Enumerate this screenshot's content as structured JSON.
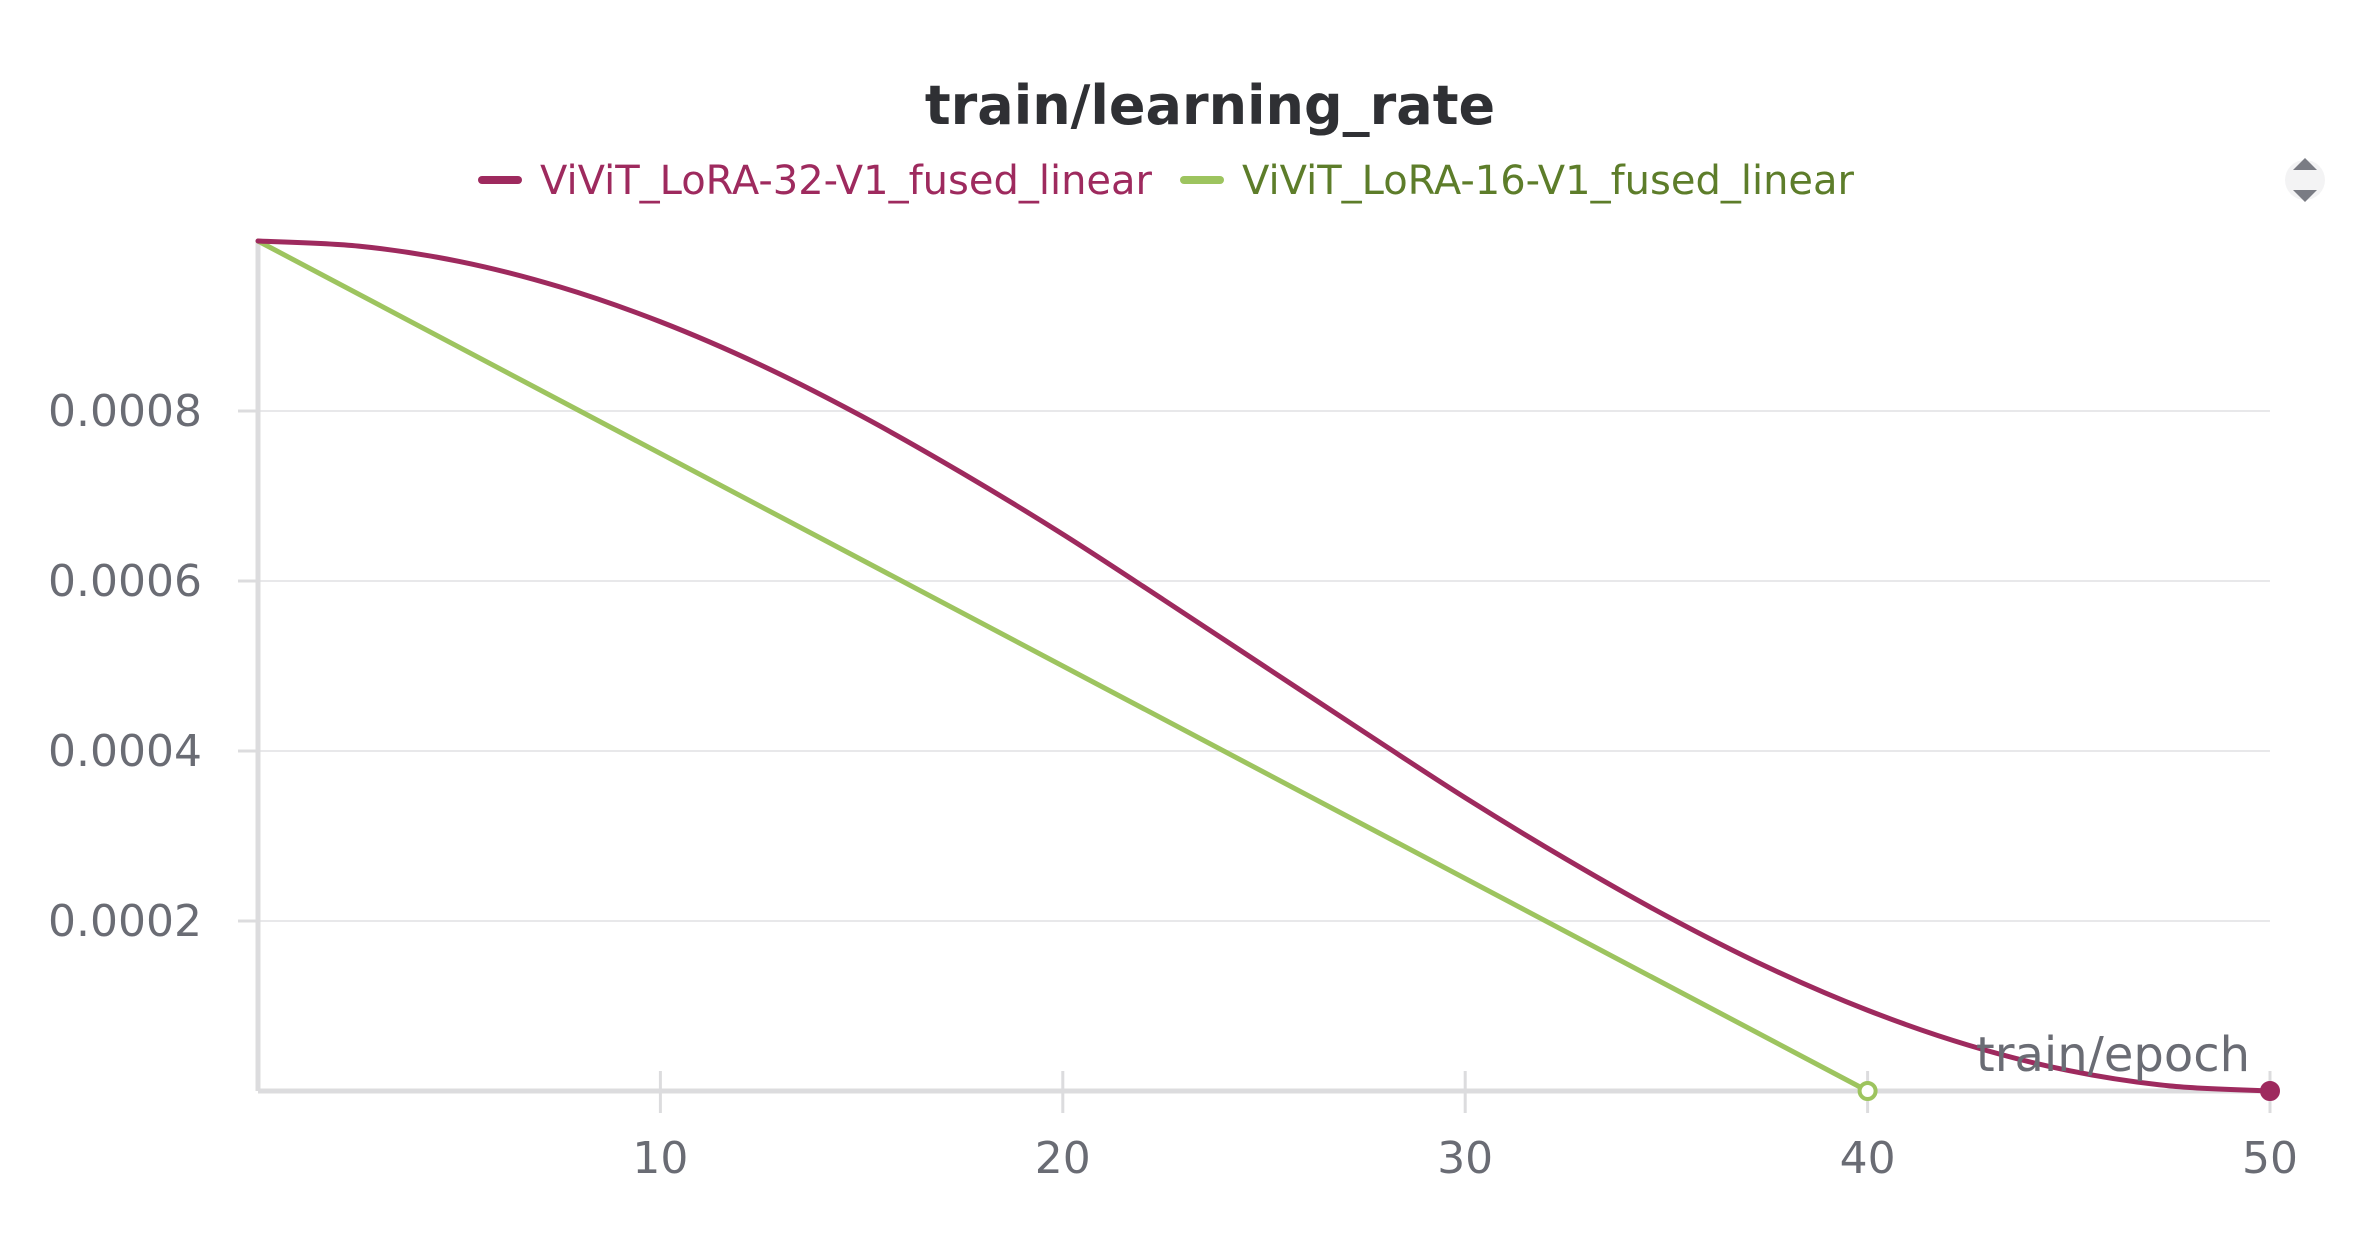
{
  "chart_data": {
    "type": "line",
    "title": "train/learning_rate",
    "xlabel": "train/epoch",
    "ylabel": "",
    "xlim": [
      0,
      50
    ],
    "ylim": [
      0,
      0.001
    ],
    "xticks": [
      10,
      20,
      30,
      40,
      50
    ],
    "yticks": [
      0.0002,
      0.0004,
      0.0006,
      0.0008
    ],
    "ytick_labels": [
      "0.0002",
      "0.0004",
      "0.0006",
      "0.0008"
    ],
    "grid": true,
    "legend_position": "top-center",
    "series": [
      {
        "name": "ViViT_LoRA-32-V1_fused_linear",
        "color": "#9e2a5e",
        "text_color": "#9e2a5e",
        "x": [
          0,
          2.5,
          5,
          7.5,
          10,
          12.5,
          15,
          17.5,
          20,
          22.5,
          25,
          27.5,
          30,
          32.5,
          35,
          37.5,
          40,
          42.5,
          45,
          47.5,
          50
        ],
        "y": [
          0.001,
          0.000994,
          0.000976,
          0.000946,
          0.000905,
          0.000854,
          0.000794,
          0.000727,
          0.000655,
          0.000578,
          0.0005,
          0.000422,
          0.000345,
          0.000273,
          0.000206,
          0.000146,
          9.5e-05,
          5.4e-05,
          2.4e-05,
          6e-06,
          0.0
        ]
      },
      {
        "name": "ViViT_LoRA-16-V1_fused_linear",
        "color": "#9dc45f",
        "text_color": "#5d7d2a",
        "x": [
          0,
          40
        ],
        "y": [
          0.001,
          0.0
        ]
      }
    ]
  },
  "ui": {
    "legend_scroll_icon": "scroll-up-down-icon"
  }
}
